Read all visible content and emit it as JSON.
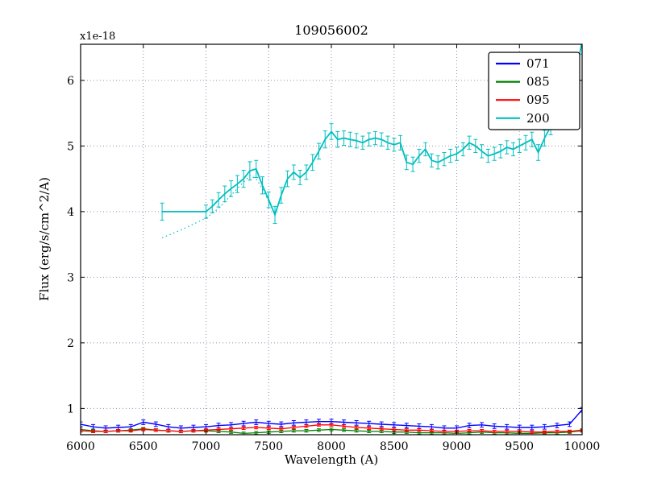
{
  "figure": {
    "background": "#ffffff"
  },
  "chart_data": {
    "type": "line",
    "title": "109056002",
    "xlabel": "Wavelength (A)",
    "ylabel": "Flux (erg/s/cm^2/A)",
    "y_offset_label": "x1e-18",
    "xlim": [
      6000,
      10000
    ],
    "ylim": [
      0.6,
      6.55
    ],
    "xticks": [
      6000,
      6500,
      7000,
      7500,
      8000,
      8500,
      9000,
      9500,
      10000
    ],
    "yticks": [
      1,
      2,
      3,
      4,
      5,
      6
    ],
    "grid": true,
    "legend": {
      "position": "upper right",
      "entries": [
        {
          "label": "071",
          "color": "#0000ff"
        },
        {
          "label": "085",
          "color": "#008000"
        },
        {
          "label": "095",
          "color": "#ff0000"
        },
        {
          "label": "200",
          "color": "#00bfbf"
        }
      ]
    },
    "series": [
      {
        "name": "200",
        "color": "#00bfbf",
        "style": "solid",
        "lw": 1.8,
        "x": [
          6650,
          7000,
          7050,
          7100,
          7150,
          7200,
          7250,
          7300,
          7350,
          7400,
          7450,
          7500,
          7550,
          7600,
          7650,
          7700,
          7750,
          7800,
          7850,
          7900,
          7950,
          8000,
          8050,
          8100,
          8150,
          8200,
          8250,
          8300,
          8350,
          8400,
          8450,
          8500,
          8550,
          8600,
          8650,
          8700,
          8750,
          8800,
          8850,
          8900,
          8950,
          9000,
          9050,
          9100,
          9150,
          9200,
          9250,
          9300,
          9350,
          9400,
          9450,
          9500,
          9550,
          9600,
          9650,
          9700,
          9750,
          9800,
          9850,
          9900,
          9950,
          10000
        ],
        "y": [
          4.0,
          4.0,
          4.08,
          4.18,
          4.27,
          4.35,
          4.42,
          4.5,
          4.62,
          4.65,
          4.4,
          4.18,
          3.95,
          4.25,
          4.5,
          4.6,
          4.52,
          4.6,
          4.75,
          4.92,
          5.1,
          5.22,
          5.1,
          5.12,
          5.1,
          5.08,
          5.05,
          5.1,
          5.12,
          5.1,
          5.05,
          5.02,
          5.05,
          4.75,
          4.72,
          4.85,
          4.95,
          4.78,
          4.75,
          4.8,
          4.85,
          4.88,
          4.95,
          5.05,
          5.0,
          4.92,
          4.85,
          4.88,
          4.92,
          4.98,
          4.95,
          5.0,
          5.05,
          5.1,
          4.9,
          5.12,
          5.3,
          5.5,
          5.65,
          5.85,
          6.1,
          6.6
        ],
        "yerr": [
          0.13,
          0.1,
          0.1,
          0.11,
          0.12,
          0.12,
          0.13,
          0.13,
          0.14,
          0.13,
          0.13,
          0.12,
          0.13,
          0.12,
          0.12,
          0.11,
          0.11,
          0.11,
          0.12,
          0.12,
          0.13,
          0.12,
          0.12,
          0.11,
          0.11,
          0.11,
          0.1,
          0.1,
          0.1,
          0.1,
          0.1,
          0.1,
          0.11,
          0.11,
          0.11,
          0.1,
          0.1,
          0.1,
          0.1,
          0.1,
          0.1,
          0.1,
          0.1,
          0.1,
          0.1,
          0.1,
          0.1,
          0.1,
          0.1,
          0.1,
          0.1,
          0.1,
          0.11,
          0.11,
          0.12,
          0.12,
          0.13,
          0.14,
          0.15,
          0.16,
          0.18,
          0.2
        ]
      },
      {
        "name": "200-dotted",
        "color": "#00bfbf",
        "style": "dotted",
        "lw": 1.2,
        "x": [
          6650,
          6800,
          7000,
          7100,
          7200,
          7300,
          7350,
          7400,
          7450,
          7500,
          7550
        ],
        "y": [
          3.6,
          3.72,
          3.9,
          4.05,
          4.25,
          4.45,
          4.55,
          4.5,
          4.35,
          4.15,
          3.97
        ]
      },
      {
        "name": "071",
        "color": "#0000ff",
        "style": "solid",
        "lw": 1.4,
        "x": [
          6000,
          6100,
          6200,
          6300,
          6400,
          6500,
          6600,
          6700,
          6800,
          6900,
          7000,
          7100,
          7200,
          7300,
          7400,
          7500,
          7600,
          7700,
          7800,
          7900,
          8000,
          8100,
          8200,
          8300,
          8400,
          8500,
          8600,
          8700,
          8800,
          8900,
          9000,
          9100,
          9200,
          9300,
          9400,
          9500,
          9600,
          9700,
          9800,
          9900,
          10000
        ],
        "y": [
          0.76,
          0.72,
          0.7,
          0.71,
          0.72,
          0.79,
          0.76,
          0.72,
          0.7,
          0.71,
          0.72,
          0.74,
          0.75,
          0.77,
          0.79,
          0.77,
          0.76,
          0.78,
          0.79,
          0.8,
          0.8,
          0.79,
          0.78,
          0.77,
          0.76,
          0.75,
          0.74,
          0.73,
          0.72,
          0.7,
          0.7,
          0.74,
          0.75,
          0.73,
          0.72,
          0.71,
          0.71,
          0.72,
          0.74,
          0.76,
          0.98
        ],
        "yerr": 0.035
      },
      {
        "name": "085",
        "color": "#008000",
        "style": "solid",
        "lw": 1.3,
        "x": [
          6000,
          6100,
          6200,
          6300,
          6400,
          6500,
          6600,
          6700,
          6800,
          6900,
          7000,
          7100,
          7200,
          7300,
          7400,
          7500,
          7600,
          7700,
          7800,
          7900,
          8000,
          8100,
          8200,
          8300,
          8400,
          8500,
          8600,
          8700,
          8800,
          8900,
          9000,
          9100,
          9200,
          9300,
          9400,
          9500,
          9600,
          9700,
          9800,
          9900,
          10000
        ],
        "y": [
          0.68,
          0.66,
          0.65,
          0.66,
          0.67,
          0.69,
          0.67,
          0.66,
          0.65,
          0.66,
          0.66,
          0.65,
          0.64,
          0.62,
          0.63,
          0.64,
          0.65,
          0.66,
          0.66,
          0.67,
          0.68,
          0.67,
          0.66,
          0.65,
          0.65,
          0.64,
          0.64,
          0.63,
          0.63,
          0.63,
          0.62,
          0.63,
          0.64,
          0.63,
          0.63,
          0.62,
          0.62,
          0.63,
          0.63,
          0.64,
          0.66
        ],
        "yerr": 0.02
      },
      {
        "name": "095",
        "color": "#ff0000",
        "style": "solid",
        "lw": 1.3,
        "x": [
          6000,
          6100,
          6200,
          6300,
          6400,
          6500,
          6600,
          6700,
          6800,
          6900,
          7000,
          7100,
          7200,
          7300,
          7400,
          7500,
          7600,
          7700,
          7800,
          7900,
          8000,
          8100,
          8200,
          8300,
          8400,
          8500,
          8600,
          8700,
          8800,
          8900,
          9000,
          9100,
          9200,
          9300,
          9400,
          9500,
          9600,
          9700,
          9800,
          9900,
          10000
        ],
        "y": [
          0.66,
          0.65,
          0.65,
          0.66,
          0.66,
          0.68,
          0.67,
          0.66,
          0.65,
          0.66,
          0.67,
          0.68,
          0.69,
          0.7,
          0.71,
          0.7,
          0.69,
          0.71,
          0.73,
          0.75,
          0.75,
          0.73,
          0.71,
          0.7,
          0.69,
          0.68,
          0.67,
          0.67,
          0.66,
          0.65,
          0.65,
          0.66,
          0.66,
          0.65,
          0.65,
          0.65,
          0.64,
          0.64,
          0.65,
          0.65,
          0.67
        ],
        "yerr": 0.02
      }
    ]
  }
}
